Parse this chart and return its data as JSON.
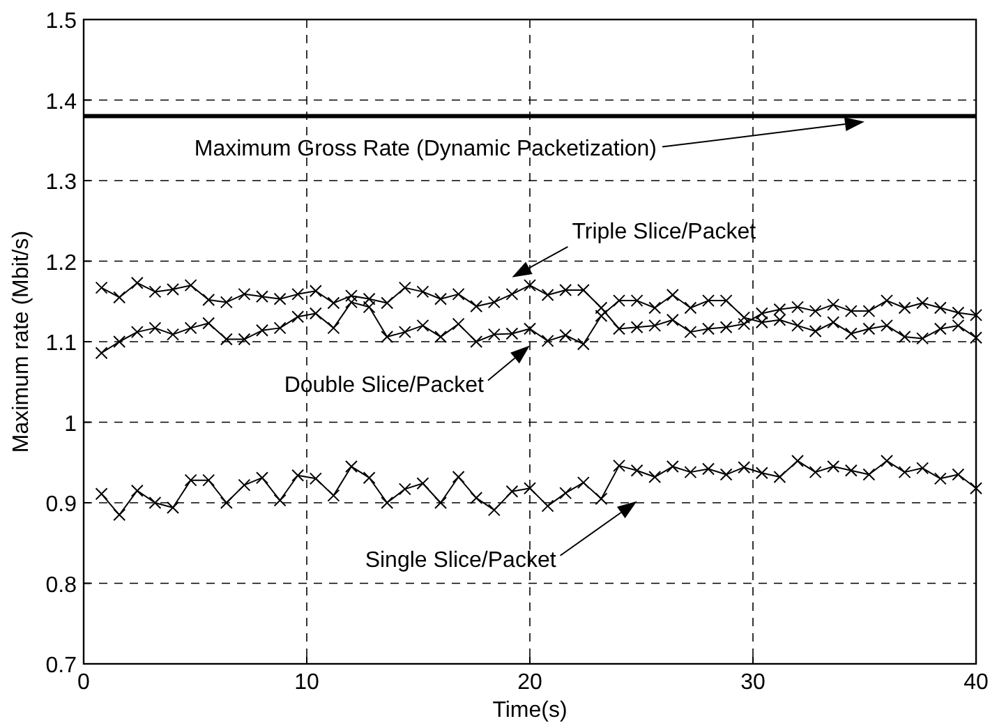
{
  "chart_data": {
    "type": "line",
    "xlabel": "Time(s)",
    "ylabel": "Maximum rate (Mbit/s)",
    "x": [
      0.8,
      1.6,
      2.4,
      3.2,
      4,
      4.8,
      5.6,
      6.4,
      7.2,
      8,
      8.8,
      9.6,
      10.4,
      11.2,
      12,
      12.8,
      13.6,
      14.4,
      15.2,
      16,
      16.8,
      17.6,
      18.4,
      19.2,
      20,
      20.8,
      21.6,
      22.4,
      23.2,
      24,
      24.8,
      25.6,
      26.4,
      27.2,
      28,
      28.8,
      29.6,
      30.4,
      31.2,
      32,
      32.8,
      33.6,
      34.4,
      35.2,
      36,
      36.8,
      37.6,
      38.4,
      39.2,
      40
    ],
    "series": [
      {
        "name": "Triple Slice/Packet",
        "color": "#000000",
        "values": [
          1.167,
          1.155,
          1.173,
          1.162,
          1.165,
          1.17,
          1.152,
          1.149,
          1.159,
          1.156,
          1.153,
          1.159,
          1.163,
          1.148,
          1.157,
          1.153,
          1.148,
          1.167,
          1.162,
          1.153,
          1.159,
          1.144,
          1.149,
          1.159,
          1.17,
          1.158,
          1.164,
          1.164,
          1.142,
          1.116,
          1.118,
          1.12,
          1.127,
          1.112,
          1.116,
          1.118,
          1.122,
          1.135,
          1.14,
          1.143,
          1.138,
          1.146,
          1.138,
          1.138,
          1.151,
          1.142,
          1.148,
          1.142,
          1.136,
          1.133
        ]
      },
      {
        "name": "Double Slice/Packet",
        "color": "#000000",
        "values": [
          1.086,
          1.1,
          1.112,
          1.117,
          1.109,
          1.117,
          1.123,
          1.103,
          1.103,
          1.114,
          1.117,
          1.131,
          1.135,
          1.117,
          1.149,
          1.143,
          1.106,
          1.112,
          1.12,
          1.106,
          1.122,
          1.1,
          1.109,
          1.11,
          1.116,
          1.101,
          1.108,
          1.097,
          1.132,
          1.151,
          1.151,
          1.142,
          1.158,
          1.142,
          1.151,
          1.151,
          1.13,
          1.124,
          1.127,
          1.12,
          1.113,
          1.124,
          1.11,
          1.116,
          1.12,
          1.106,
          1.104,
          1.116,
          1.12,
          1.105
        ]
      },
      {
        "name": "Single Slice/Packet",
        "color": "#000000",
        "values": [
          0.911,
          0.885,
          0.915,
          0.9,
          0.894,
          0.928,
          0.928,
          0.9,
          0.922,
          0.931,
          0.903,
          0.934,
          0.93,
          0.909,
          0.945,
          0.931,
          0.9,
          0.917,
          0.924,
          0.9,
          0.932,
          0.906,
          0.891,
          0.914,
          0.918,
          0.896,
          0.912,
          0.925,
          0.905,
          0.946,
          0.94,
          0.932,
          0.945,
          0.938,
          0.942,
          0.935,
          0.944,
          0.937,
          0.932,
          0.952,
          0.938,
          0.945,
          0.94,
          0.935,
          0.952,
          0.938,
          0.943,
          0.93,
          0.935,
          0.918
        ]
      }
    ],
    "marker": "cross",
    "line_style": "solid",
    "grid": true,
    "xlim": [
      0,
      40
    ],
    "xticks": [
      0,
      10,
      20,
      30,
      40
    ],
    "ylim": [
      0.7,
      1.5
    ],
    "yticks": [
      0.7,
      0.8,
      0.9,
      1,
      1.1,
      1.2,
      1.3,
      1.4,
      1.5
    ],
    "ref_lines": [
      {
        "axis": "y",
        "value": 1.38,
        "label": "Maximum Gross Rate (Dynamic Packetization)",
        "color": "#000000"
      }
    ]
  }
}
